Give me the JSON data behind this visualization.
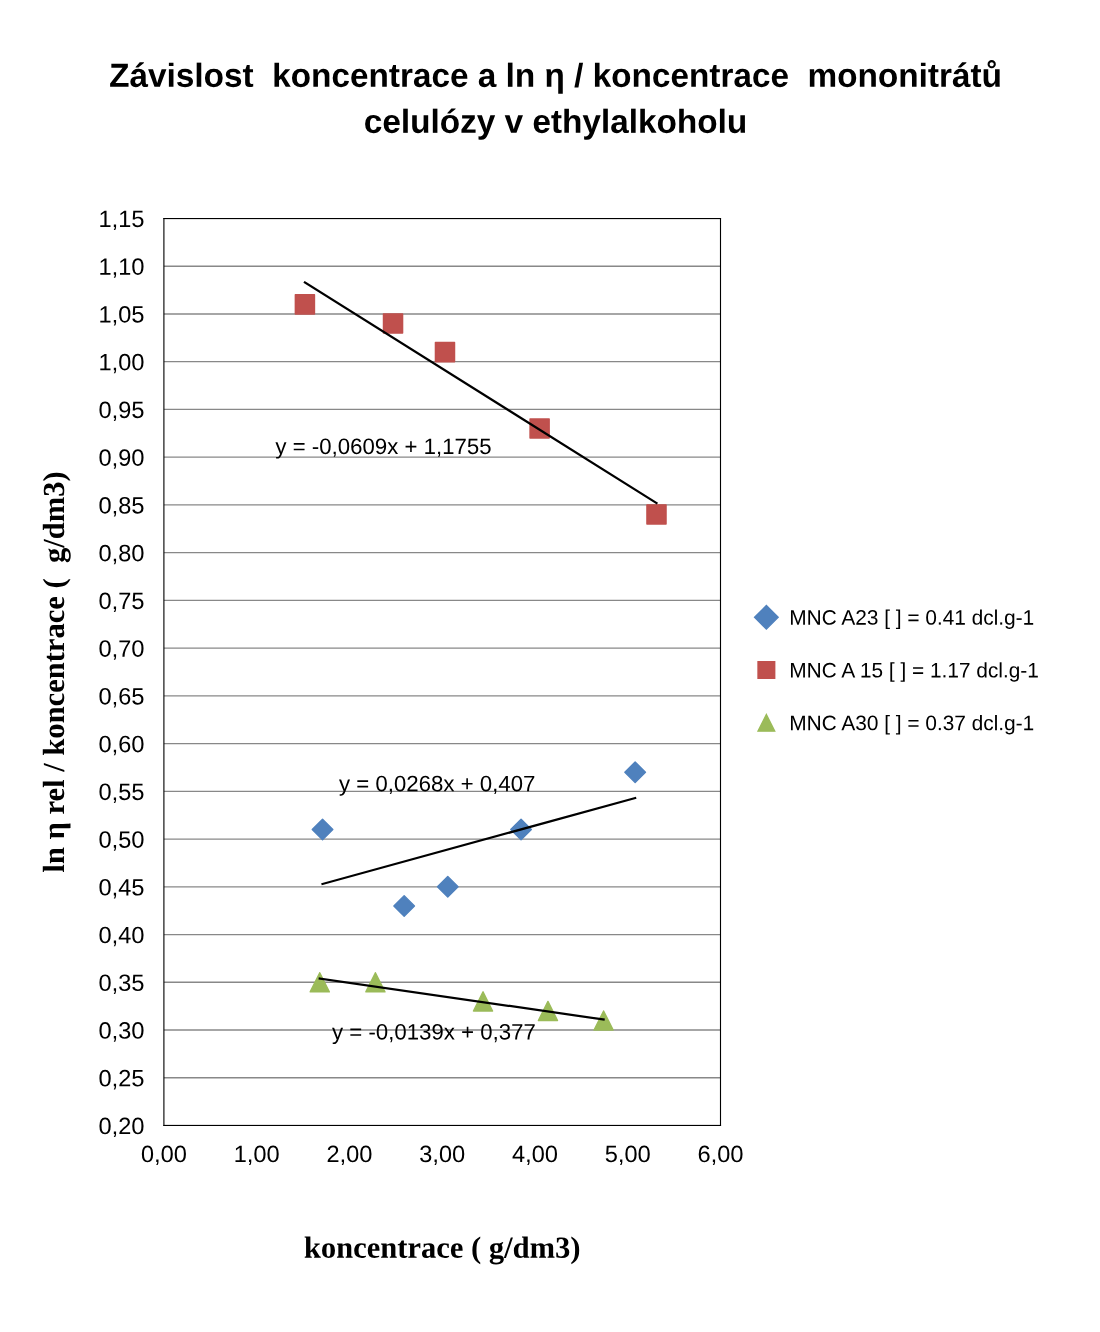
{
  "chart_data": {
    "type": "scatter",
    "title": "Závislost  koncentrace a ln η / koncentrace  mononitrátů\ncelulózy v ethylalkoholu",
    "xlabel": "koncentrace ( g/dm3)",
    "ylabel": "ln η rel / koncentrace (  g/dm3)",
    "series": [
      {
        "name": "MNC A23 [ ] = 0.41 dcl.g-1",
        "color": "#4f81bd",
        "marker": "diamond",
        "x": [
          1.71,
          2.59,
          3.06,
          3.85,
          5.08
        ],
        "values": [
          0.51,
          0.43,
          0.45,
          0.51,
          0.57
        ]
      },
      {
        "name": "MNC A 15 [ ] = 1.17 dcl.g-1",
        "color": "#c0504d",
        "marker": "square",
        "x": [
          1.52,
          2.47,
          3.03,
          4.05,
          5.31
        ],
        "values": [
          1.06,
          1.04,
          1.01,
          0.93,
          0.84
        ]
      },
      {
        "name": "MNC A30 [ ] = 0.37 dcl.g-1",
        "color": "#9bbb59",
        "marker": "triangle",
        "x": [
          1.68,
          2.28,
          3.44,
          4.14,
          4.74
        ],
        "values": [
          0.35,
          0.35,
          0.33,
          0.32,
          0.31
        ]
      },
      {
        "type": "line",
        "color": "#000000",
        "x": [
          1.71,
          5.08
        ],
        "values": [
          0.453,
          0.543
        ]
      },
      {
        "type": "line",
        "color": "#000000",
        "x": [
          1.52,
          5.31
        ],
        "values": [
          1.083,
          0.852
        ]
      },
      {
        "type": "line",
        "color": "#000000",
        "x": [
          1.68,
          4.74
        ],
        "values": [
          0.354,
          0.311
        ]
      }
    ],
    "annotations": [
      "y = 0,0268x + 0,407",
      "y = -0,0609x + 1,1755",
      "y = -0,0139x + 0,377"
    ],
    "xlim": [
      0,
      6
    ],
    "xticks": [
      {
        "value": 0,
        "label": "0,00"
      },
      {
        "value": 1,
        "label": "1,00"
      },
      {
        "value": 2,
        "label": "2,00"
      },
      {
        "value": 3,
        "label": "3,00"
      },
      {
        "value": 4,
        "label": "4,00"
      },
      {
        "value": 5,
        "label": "5,00"
      },
      {
        "value": 6,
        "label": "6,00"
      }
    ],
    "ylim": [
      0.2,
      1.15
    ],
    "yticks": [
      {
        "value": 0.2,
        "label": "0,20"
      },
      {
        "value": 0.25,
        "label": "0,25"
      },
      {
        "value": 0.3,
        "label": "0,30"
      },
      {
        "value": 0.35,
        "label": "0,35"
      },
      {
        "value": 0.4,
        "label": "0,40"
      },
      {
        "value": 0.45,
        "label": "0,45"
      },
      {
        "value": 0.5,
        "label": "0,50"
      },
      {
        "value": 0.55,
        "label": "0,55"
      },
      {
        "value": 0.6,
        "label": "0,60"
      },
      {
        "value": 0.65,
        "label": "0,65"
      },
      {
        "value": 0.7,
        "label": "0,70"
      },
      {
        "value": 0.75,
        "label": "0,75"
      },
      {
        "value": 0.8,
        "label": "0,80"
      },
      {
        "value": 0.85,
        "label": "0,85"
      },
      {
        "value": 0.9,
        "label": "0,90"
      },
      {
        "value": 0.95,
        "label": "0,95"
      },
      {
        "value": 1.0,
        "label": "1,00"
      },
      {
        "value": 1.05,
        "label": "1,05"
      },
      {
        "value": 1.1,
        "label": "1,10"
      },
      {
        "value": 1.15,
        "label": "1,15"
      }
    ],
    "grid": "y",
    "legend": "right"
  }
}
